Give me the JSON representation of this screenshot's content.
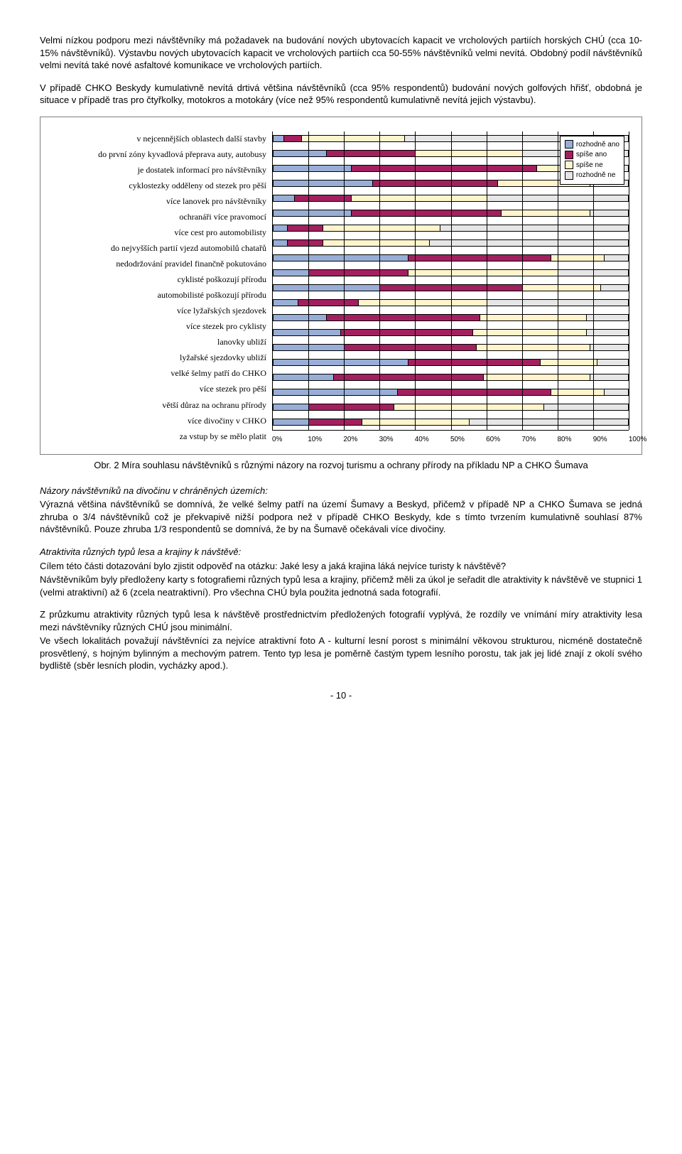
{
  "paragraphs": {
    "p1": "Velmi nízkou podporu mezi návštěvníky má požadavek na budování nových ubytovacích kapacit ve vrcholových partiích horských CHÚ (cca 10-15% návštěvníků). Výstavbu nových ubytovacích kapacit ve vrcholových partiích cca 50-55% návštěvníků velmi nevítá. Obdobný podíl návštěvníků velmi nevítá také nové asfaltové komunikace ve vrcholových partiích.",
    "p2": "V případě CHKO Beskydy kumulativně nevítá drtivá většina návštěvníků (cca 95% respondentů) budování nových golfových hřišť, obdobná je situace v případě tras pro čtyřkolky, motokros a motokáry (více než 95% respondentů kumulativně nevítá jejich výstavbu).",
    "caption": "Obr. 2 Míra souhlasu návštěvníků s různými názory na rozvoj turismu a ochrany přírody na příkladu NP a CHKO Šumava",
    "sh1": "Názory návštěvníků na divočinu v chráněných územích:",
    "p3": "Výrazná většina návštěvníků se domnívá, že velké šelmy patří na území Šumavy a Beskyd, přičemž v případě NP a CHKO Šumava se jedná zhruba o 3/4 návštěvníků což je překvapivě nižší podpora než v případě CHKO Beskydy, kde s tímto tvrzením kumulativně souhlasí 87% návštěvníků. Pouze zhruba 1/3 respondentů se domnívá, že by na Šumavě očekávali více divočiny.",
    "sh2": "Atraktivita různých typů lesa a krajiny k návštěvě:",
    "p4": "Cílem této části dotazování bylo zjistit odpověď na otázku: Jaké lesy a jaká krajina láká nejvíce turisty k návštěvě?",
    "p5": "Návštěvníkům byly předloženy karty s fotografiemi různých typů lesa a krajiny, přičemž měli za úkol je seřadit dle atraktivity k návštěvě ve stupnici 1 (velmi atraktivní) až 6 (zcela neatraktivní). Pro všechna CHÚ byla použita jednotná sada fotografií.",
    "p6": "Z průzkumu atraktivity různých typů lesa k návštěvě prostřednictvím předložených fotografií vyplývá, že rozdíly ve vnímání míry atraktivity lesa mezi návštěvníky různých CHÚ jsou minimální.",
    "p7": "Ve všech lokalitách považují návštěvníci za nejvíce atraktivní foto A - kulturní lesní porost s minimální věkovou strukturou, nicméně dostatečně prosvětlený, s hojným bylinným a mechovým patrem. Tento typ lesa je poměrně častým typem lesního porostu, tak jak jej lidé znají z okolí svého bydliště (sběr lesních plodin, vycházky apod.).",
    "pagefoot": "- 10 -"
  },
  "chart": {
    "type": "stacked-horizontal-bar",
    "legend": [
      "rozhodně ano",
      "spíše ano",
      "spíše ne",
      "rozhodně ne"
    ],
    "legend_colors": [
      "#98aed6",
      "#a3205f",
      "#fff4cc",
      "#e6e6e6"
    ],
    "plot_bg": "#ffffff",
    "grid_color": "#000000",
    "x_ticks": [
      "0%",
      "10%",
      "20%",
      "30%",
      "40%",
      "50%",
      "60%",
      "70%",
      "80%",
      "90%",
      "100%"
    ],
    "x_tick_percents": [
      0,
      10,
      20,
      30,
      40,
      50,
      60,
      70,
      80,
      90,
      100
    ],
    "label_fontsize": 12,
    "tick_fontsize": 10,
    "categories": [
      "v nejcennějších oblastech další stavby",
      "do první zóny kyvadlová přeprava auty, autobusy",
      "je dostatek informací pro návštěvníky",
      "cyklostezky odděleny od stezek pro pěší",
      "více lanovek pro návštěvníky",
      "ochranáři více pravomocí",
      "více cest pro automobilisty",
      "do nejvyšších partií vjezd automobilů chatařů",
      "nedodržování pravidel finančně pokutováno",
      "cyklisté poškozují přírodu",
      "automobilisté poškozují přírodu",
      "více lyžařských sjezdovek",
      "více stezek pro cyklisty",
      "lanovky ubliží",
      "lyžařské sjezdovky ubliží",
      "velké šelmy patří do CHKO",
      "více stezek pro pěší",
      "větší důraz na ochranu přírody",
      "více divočiny v CHKO",
      "za vstup by se mělo platit"
    ],
    "data": [
      [
        3,
        5,
        29,
        63
      ],
      [
        15,
        25,
        30,
        30
      ],
      [
        22,
        52,
        19,
        7
      ],
      [
        28,
        35,
        26,
        11
      ],
      [
        6,
        16,
        38,
        40
      ],
      [
        22,
        42,
        25,
        11
      ],
      [
        4,
        10,
        33,
        53
      ],
      [
        4,
        10,
        30,
        56
      ],
      [
        38,
        40,
        15,
        7
      ],
      [
        10,
        28,
        42,
        20
      ],
      [
        30,
        40,
        22,
        8
      ],
      [
        7,
        17,
        36,
        40
      ],
      [
        15,
        43,
        30,
        12
      ],
      [
        19,
        37,
        32,
        12
      ],
      [
        20,
        37,
        32,
        11
      ],
      [
        38,
        37,
        16,
        9
      ],
      [
        17,
        42,
        30,
        11
      ],
      [
        35,
        43,
        15,
        7
      ],
      [
        10,
        24,
        42,
        24
      ],
      [
        10,
        15,
        30,
        45
      ]
    ]
  }
}
